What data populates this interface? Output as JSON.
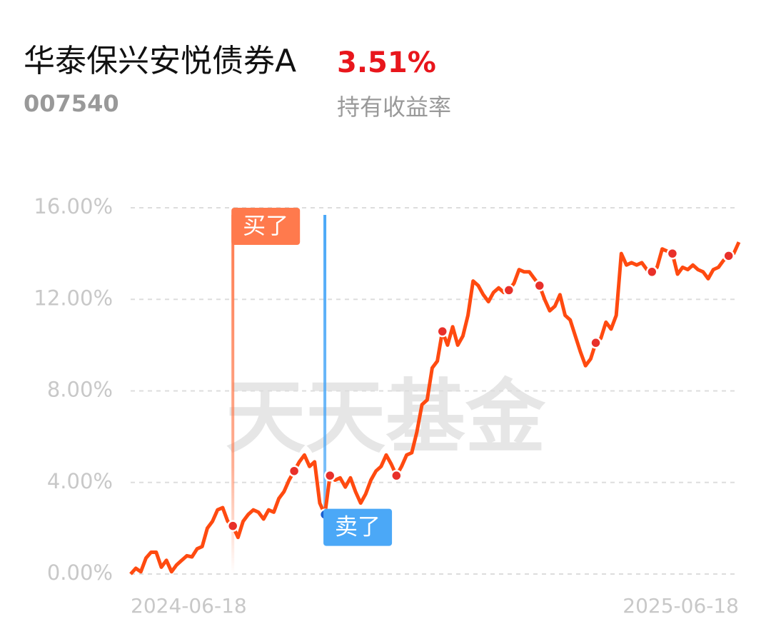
{
  "chart_data": {
    "type": "line",
    "title": "华泰保兴安悦债券A",
    "code": "007540",
    "return_value": "3.51%",
    "return_label": "持有收益率",
    "watermark": "天天基金",
    "categories": [
      "2024-06-18",
      null,
      null,
      null,
      null,
      null,
      null,
      null,
      null,
      null,
      null,
      null,
      null,
      null,
      null,
      null,
      null,
      null,
      null,
      null,
      null,
      null,
      null,
      null,
      null,
      null,
      null,
      null,
      null,
      null,
      null,
      null,
      null,
      null,
      null,
      null,
      null,
      null,
      null,
      null,
      null,
      null,
      null,
      null,
      null,
      null,
      null,
      null,
      null,
      null,
      null,
      null,
      null,
      null,
      null,
      null,
      null,
      null,
      null,
      null,
      null,
      null,
      null,
      null,
      null,
      null,
      null,
      null,
      null,
      null,
      null,
      null,
      null,
      null,
      null,
      null,
      null,
      null,
      null,
      null,
      null,
      null,
      null,
      null,
      null,
      null,
      null,
      null,
      null,
      null,
      null,
      null,
      null,
      null,
      null,
      null,
      null,
      null,
      null,
      null,
      null,
      null,
      null,
      null,
      null,
      null,
      null,
      null,
      null,
      null,
      null,
      null,
      null,
      null,
      null,
      null,
      null,
      null,
      null,
      "2025-06-18"
    ],
    "series": [
      {
        "color": "#ff4a10",
        "values": [
          0.0,
          0.25,
          0.1,
          0.7,
          0.95,
          0.95,
          0.3,
          0.6,
          0.1,
          0.4,
          0.6,
          0.8,
          0.75,
          1.1,
          1.2,
          2.0,
          2.3,
          2.8,
          2.9,
          2.3,
          2.1,
          1.6,
          2.3,
          2.6,
          2.8,
          2.7,
          2.4,
          2.8,
          2.7,
          3.3,
          3.6,
          4.1,
          4.5,
          4.9,
          5.2,
          4.7,
          4.9,
          3.1,
          2.6,
          4.3,
          4.1,
          4.2,
          3.8,
          4.2,
          3.6,
          3.1,
          3.5,
          4.1,
          4.5,
          4.7,
          5.2,
          4.8,
          4.3,
          4.7,
          5.2,
          5.3,
          6.2,
          7.4,
          7.6,
          9.0,
          9.3,
          10.6,
          10.0,
          10.8,
          10.0,
          10.4,
          11.3,
          12.8,
          12.6,
          12.2,
          11.9,
          12.3,
          12.5,
          12.3,
          12.4,
          12.7,
          13.3,
          13.2,
          13.2,
          12.9,
          12.6,
          12.0,
          11.5,
          11.7,
          12.2,
          11.3,
          11.1,
          10.4,
          9.7,
          9.1,
          9.4,
          10.1,
          10.3,
          11.0,
          10.7,
          11.3,
          14.0,
          13.5,
          13.6,
          13.5,
          13.6,
          13.3,
          13.2,
          13.4,
          14.2,
          14.1,
          14.0,
          13.1,
          13.4,
          13.3,
          13.5,
          13.3,
          13.2,
          12.9,
          13.3,
          13.4,
          13.7,
          13.9,
          14.0,
          14.5
        ]
      },
      {
        "color": "#e8302a",
        "values": [
          null,
          null,
          null,
          null,
          null,
          null,
          null,
          null,
          null,
          null,
          null,
          null,
          null,
          null,
          null,
          null,
          null,
          null,
          null,
          null,
          null,
          null,
          null,
          null,
          null,
          null,
          null,
          null,
          null,
          null,
          null,
          null,
          4.5,
          null,
          null,
          null,
          null,
          null,
          null,
          4.3,
          null,
          null,
          null,
          null,
          null,
          null,
          null,
          null,
          null,
          null,
          null,
          null,
          4.3,
          null,
          null,
          null,
          null,
          null,
          null,
          null,
          null,
          10.6,
          null,
          null,
          null,
          null,
          null,
          null,
          null,
          null,
          null,
          null,
          null,
          null,
          12.4,
          null,
          null,
          null,
          null,
          null,
          12.6,
          null,
          null,
          null,
          null,
          null,
          null,
          null,
          null,
          null,
          null,
          10.1,
          null,
          null,
          null,
          null,
          null,
          null,
          null,
          null,
          null,
          null,
          13.2,
          null,
          null,
          null,
          14.0,
          null,
          null,
          null,
          null,
          null,
          null,
          null,
          null,
          null,
          null,
          13.9,
          null,
          null
        ]
      },
      {
        "name": "买了",
        "color": "#ff7a4d",
        "values": [
          null,
          null,
          null,
          null,
          null,
          null,
          null,
          null,
          null,
          null,
          null,
          null,
          null,
          null,
          null,
          null,
          null,
          null,
          null,
          null,
          2.1,
          null,
          null,
          null,
          null,
          null,
          null,
          null,
          null,
          null,
          null,
          null,
          null,
          null,
          null,
          null,
          null,
          null,
          null,
          null,
          null,
          null,
          null,
          null,
          null,
          null,
          null,
          null,
          null,
          null,
          null,
          null,
          null,
          null,
          null,
          null,
          null,
          null,
          null,
          null,
          null,
          null,
          null,
          null,
          null,
          null,
          null,
          null,
          null,
          null,
          null,
          null,
          null,
          null,
          null,
          null,
          null,
          null,
          null,
          null,
          null,
          null,
          null,
          null,
          null,
          null,
          null,
          null,
          null,
          null,
          null,
          null,
          null,
          null,
          null,
          null,
          null,
          null,
          null,
          null,
          null,
          null,
          null,
          null,
          null,
          null,
          null,
          null,
          null,
          null,
          null,
          null,
          null,
          null,
          null,
          null,
          null,
          null,
          null,
          null
        ]
      },
      {
        "name": "卖了",
        "color": "#4ba8f7",
        "values": [
          null,
          null,
          null,
          null,
          null,
          null,
          null,
          null,
          null,
          null,
          null,
          null,
          null,
          null,
          null,
          null,
          null,
          null,
          null,
          null,
          null,
          null,
          null,
          null,
          null,
          null,
          null,
          null,
          null,
          null,
          null,
          null,
          null,
          null,
          null,
          null,
          null,
          null,
          2.6,
          null,
          null,
          null,
          null,
          null,
          null,
          null,
          null,
          null,
          null,
          null,
          null,
          null,
          null,
          null,
          null,
          null,
          null,
          null,
          null,
          null,
          null,
          null,
          null,
          null,
          null,
          null,
          null,
          null,
          null,
          null,
          null,
          null,
          null,
          null,
          null,
          null,
          null,
          null,
          null,
          null,
          null,
          null,
          null,
          null,
          null,
          null,
          null,
          null,
          null,
          null,
          null,
          null,
          null,
          null,
          null,
          null,
          null,
          null,
          null,
          null,
          null,
          null,
          null,
          null,
          null,
          null,
          null,
          null,
          null,
          null,
          null,
          null,
          null,
          null,
          null,
          null,
          null,
          null,
          null,
          null
        ]
      }
    ],
    "ylim": [
      0,
      16
    ],
    "yticks": [
      {
        "value": 0,
        "label": "0.00%"
      },
      {
        "value": 4,
        "label": "4.00%"
      },
      {
        "value": 8,
        "label": "8.00%"
      },
      {
        "value": 12,
        "label": "12.00%"
      },
      {
        "value": 16,
        "label": "16.00%"
      }
    ],
    "grid": true
  }
}
